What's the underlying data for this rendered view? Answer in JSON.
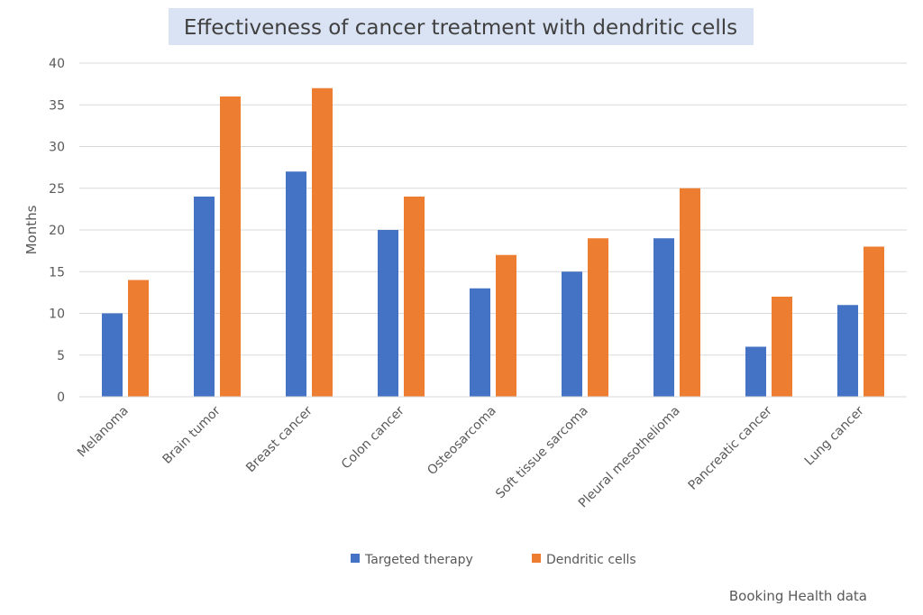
{
  "chart_data": {
    "type": "bar",
    "title": "Effectiveness of cancer treatment with dendritic cells",
    "ylabel": "Months",
    "xlabel": "",
    "ylim": [
      0,
      40
    ],
    "yticks": [
      0,
      5,
      10,
      15,
      20,
      25,
      30,
      35,
      40
    ],
    "grid": true,
    "legend_position": "bottom",
    "categories": [
      "Melanoma",
      "Brain tumor",
      "Breast cancer",
      "Colon cancer",
      "Osteosarcoma",
      "Soft tissue sarcoma",
      "Pleural mesothelioma",
      "Pancreatic cancer",
      "Lung cancer"
    ],
    "series": [
      {
        "name": "Targeted therapy",
        "color": "#4472C4",
        "values": [
          10,
          24,
          27,
          20,
          13,
          15,
          19,
          6,
          11
        ]
      },
      {
        "name": "Dendritic cells",
        "color": "#ED7D31",
        "values": [
          14,
          36,
          37,
          24,
          17,
          19,
          25,
          12,
          18
        ]
      }
    ],
    "title_background": "#DAE3F3",
    "source": "Booking Health data"
  }
}
